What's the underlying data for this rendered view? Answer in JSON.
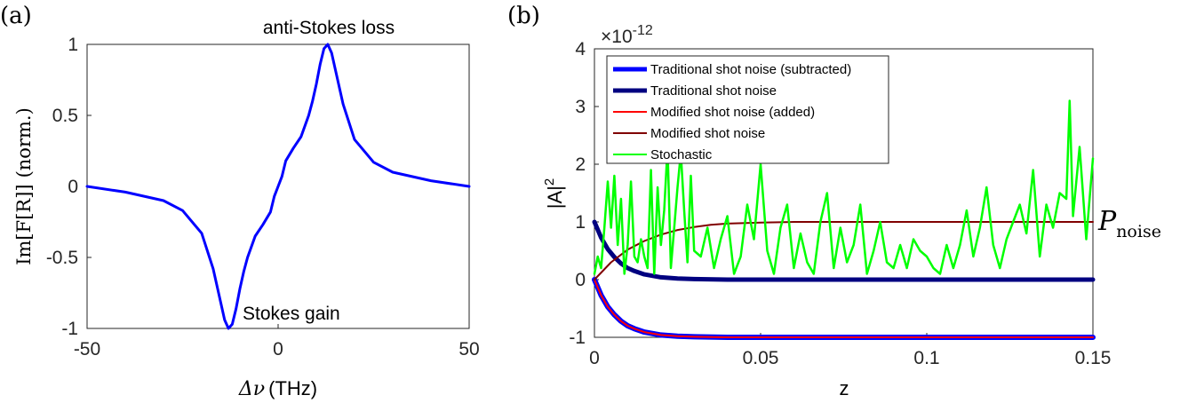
{
  "figure": {
    "panel_a_label": "(a)",
    "panel_b_label": "(b)"
  },
  "chart_data": [
    {
      "id": "panel-a",
      "type": "line",
      "title": "",
      "xlabel_symbol": "Δν",
      "xlabel_unit": "(THz)",
      "ylabel_main": "Im[F[R]]",
      "ylabel_suffix": "(norm.)",
      "xlim": [
        -50,
        50
      ],
      "ylim": [
        -1,
        1
      ],
      "xticks": [
        -50,
        0,
        50
      ],
      "xtick_labels": [
        "-50",
        "0",
        "50"
      ],
      "yticks": [
        -1,
        -0.5,
        0,
        0.5,
        1
      ],
      "ytick_labels": [
        "-1",
        "-0.5",
        "0",
        "0.5",
        "1"
      ],
      "grid": false,
      "color": "#0000ff",
      "annotations": [
        {
          "text": "anti-Stokes loss",
          "x": 13,
          "y": 1
        },
        {
          "text": "Stokes gain",
          "x": -13,
          "y": -1
        }
      ],
      "series": [
        {
          "name": "Im[F[R]]",
          "x": [
            -50,
            -40,
            -30,
            -25,
            -20,
            -17,
            -15,
            -14,
            -13,
            -12,
            -11,
            -10,
            -9,
            -8,
            -6,
            -4,
            -2,
            -1,
            0,
            1,
            2,
            4,
            6,
            8,
            9,
            10,
            11,
            12,
            13,
            14,
            15,
            17,
            20,
            25,
            30,
            40,
            50
          ],
          "y": [
            0,
            -0.04,
            -0.1,
            -0.17,
            -0.33,
            -0.58,
            -0.82,
            -0.94,
            -1,
            -0.97,
            -0.86,
            -0.72,
            -0.6,
            -0.5,
            -0.35,
            -0.27,
            -0.18,
            -0.07,
            0,
            0.07,
            0.18,
            0.27,
            0.35,
            0.5,
            0.6,
            0.72,
            0.86,
            0.97,
            1,
            0.94,
            0.82,
            0.58,
            0.33,
            0.17,
            0.1,
            0.04,
            0
          ]
        }
      ]
    },
    {
      "id": "panel-b",
      "type": "line",
      "title": "",
      "xlabel": "z",
      "ylabel": "|A|",
      "ylabel_sup": "2",
      "exponent_prefix": "×10",
      "exponent_power": "-12",
      "side_label_main": "P",
      "side_label_sub": "noise",
      "xlim": [
        0,
        0.15
      ],
      "ylim": [
        -1,
        4
      ],
      "xticks": [
        0,
        0.05,
        0.1,
        0.15
      ],
      "xtick_labels": [
        "0",
        "0.05",
        "0.1",
        "0.15"
      ],
      "yticks": [
        -1,
        0,
        1,
        2,
        3,
        4
      ],
      "ytick_labels": [
        "-1",
        "0",
        "1",
        "2",
        "3",
        "4"
      ],
      "grid": false,
      "legend_position": "top-left",
      "series": [
        {
          "name": "Traditional shot noise (subtracted)",
          "color": "#0000ff",
          "x": [
            0,
            0.002,
            0.004,
            0.006,
            0.008,
            0.01,
            0.012,
            0.015,
            0.02,
            0.025,
            0.03,
            0.04,
            0.05,
            0.075,
            0.1,
            0.125,
            0.15
          ],
          "y": [
            0,
            -0.27,
            -0.47,
            -0.61,
            -0.72,
            -0.8,
            -0.85,
            -0.91,
            -0.96,
            -0.98,
            -0.99,
            -1,
            -1,
            -1,
            -1,
            -1,
            -1
          ]
        },
        {
          "name": "Traditional shot noise",
          "color": "#000080",
          "x": [
            0,
            0.002,
            0.004,
            0.006,
            0.008,
            0.01,
            0.012,
            0.015,
            0.02,
            0.025,
            0.03,
            0.04,
            0.05,
            0.075,
            0.1,
            0.125,
            0.15
          ],
          "y": [
            1,
            0.73,
            0.53,
            0.39,
            0.28,
            0.2,
            0.15,
            0.09,
            0.04,
            0.02,
            0.01,
            0,
            0,
            0,
            0,
            0,
            0
          ]
        },
        {
          "name": "Modified shot noise (added)",
          "color": "#ff0000",
          "x": [
            0,
            0.002,
            0.004,
            0.006,
            0.008,
            0.01,
            0.012,
            0.015,
            0.02,
            0.025,
            0.03,
            0.04,
            0.05,
            0.075,
            0.1,
            0.125,
            0.15
          ],
          "y": [
            0,
            -0.27,
            -0.47,
            -0.61,
            -0.72,
            -0.8,
            -0.85,
            -0.91,
            -0.96,
            -0.98,
            -0.99,
            -1,
            -1,
            -1,
            -1,
            -1,
            -1
          ]
        },
        {
          "name": "Modified shot noise",
          "color": "#800000",
          "x": [
            0,
            0.005,
            0.01,
            0.015,
            0.02,
            0.025,
            0.03,
            0.035,
            0.04,
            0.05,
            0.06,
            0.08,
            0.1,
            0.125,
            0.15
          ],
          "y": [
            0,
            0.3,
            0.52,
            0.67,
            0.78,
            0.86,
            0.91,
            0.95,
            0.97,
            0.99,
            1,
            1,
            1,
            1,
            1
          ]
        },
        {
          "name": "Stochastic",
          "color": "#00ff00",
          "x": [
            0,
            0.001,
            0.002,
            0.003,
            0.004,
            0.005,
            0.006,
            0.007,
            0.008,
            0.009,
            0.01,
            0.011,
            0.012,
            0.013,
            0.014,
            0.015,
            0.016,
            0.017,
            0.018,
            0.019,
            0.02,
            0.021,
            0.022,
            0.023,
            0.024,
            0.025,
            0.026,
            0.027,
            0.028,
            0.029,
            0.03,
            0.032,
            0.034,
            0.036,
            0.038,
            0.04,
            0.042,
            0.044,
            0.046,
            0.048,
            0.05,
            0.052,
            0.054,
            0.056,
            0.058,
            0.06,
            0.062,
            0.064,
            0.066,
            0.068,
            0.07,
            0.072,
            0.074,
            0.076,
            0.078,
            0.08,
            0.082,
            0.084,
            0.086,
            0.088,
            0.09,
            0.092,
            0.094,
            0.096,
            0.098,
            0.1,
            0.102,
            0.104,
            0.106,
            0.108,
            0.11,
            0.112,
            0.114,
            0.116,
            0.118,
            0.12,
            0.122,
            0.124,
            0.126,
            0.128,
            0.13,
            0.132,
            0.134,
            0.136,
            0.138,
            0.14,
            0.142,
            0.143,
            0.144,
            0.146,
            0.148,
            0.15
          ],
          "y": [
            0.1,
            0.4,
            0.2,
            0.9,
            1.7,
            0.9,
            1.8,
            0.6,
            1.4,
            0.1,
            0.6,
            1.7,
            0.4,
            0.3,
            0.7,
            0.4,
            0.2,
            1.9,
            0.1,
            1.6,
            0.6,
            1.2,
            2.3,
            0.2,
            0.9,
            1.6,
            2.2,
            1.2,
            0.3,
            1.8,
            0.5,
            0.4,
            0.9,
            0.2,
            0.7,
            1.1,
            0.1,
            0.4,
            1.3,
            0.7,
            2.0,
            0.5,
            0.1,
            0.9,
            1.3,
            0.2,
            0.8,
            0.3,
            0.1,
            1.0,
            1.5,
            0.2,
            0.9,
            0.3,
            0.6,
            1.3,
            0.1,
            0.5,
            1.0,
            0.3,
            0.2,
            0.6,
            0.2,
            0.7,
            0.5,
            0.4,
            0.2,
            0.1,
            0.6,
            0.2,
            0.6,
            1.2,
            0.4,
            0.9,
            1.6,
            0.6,
            0.2,
            0.7,
            1.0,
            1.3,
            0.8,
            1.9,
            0.4,
            1.3,
            0.9,
            1.5,
            1.4,
            3.1,
            1.1,
            2.3,
            0.7,
            2.1
          ]
        }
      ]
    }
  ]
}
